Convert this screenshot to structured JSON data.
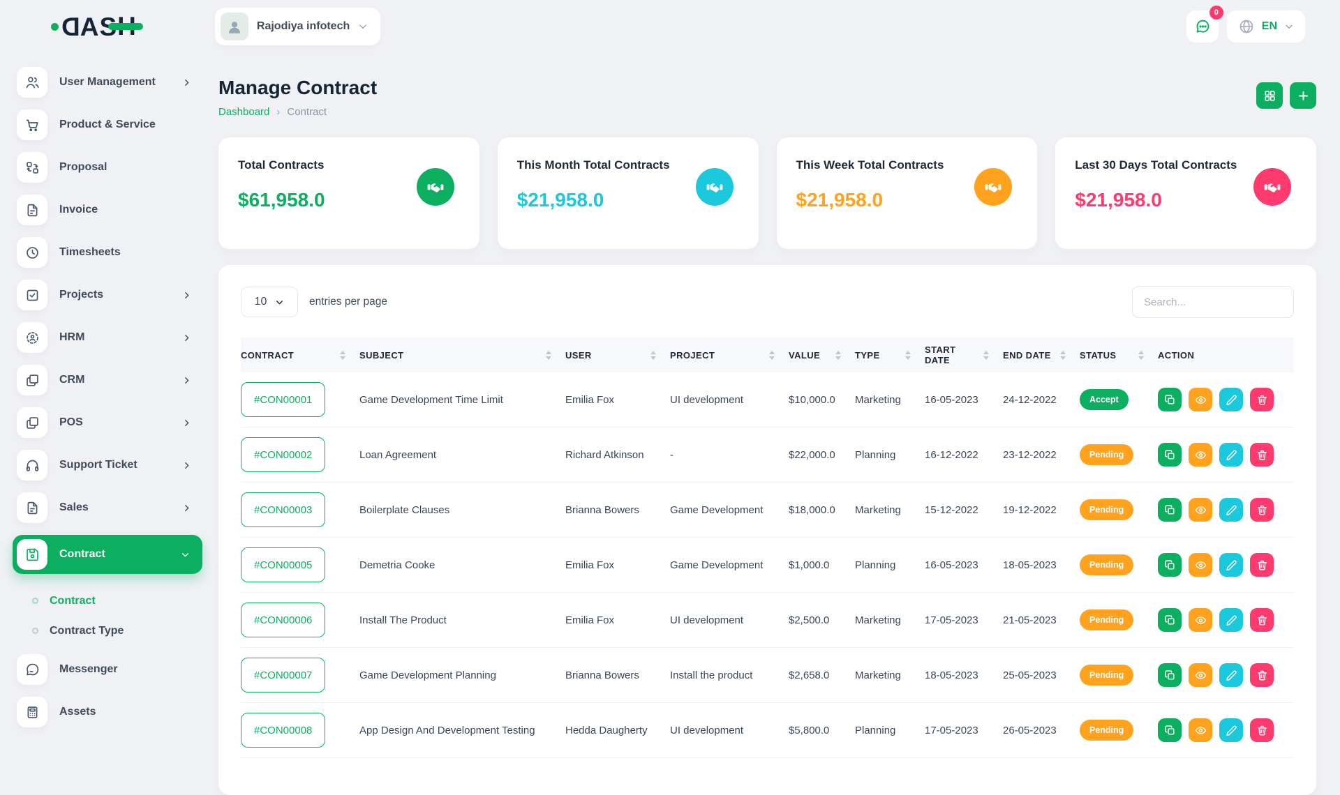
{
  "brand": {
    "name": "DASH"
  },
  "topbar": {
    "company": "Rajodiya infotech",
    "chat_badge": "0",
    "language": "EN"
  },
  "sidebar": {
    "items": [
      {
        "label": "User Management",
        "icon": "users",
        "chevron": true
      },
      {
        "label": "Product & Service",
        "icon": "cart",
        "chevron": false
      },
      {
        "label": "Proposal",
        "icon": "proposal",
        "chevron": false
      },
      {
        "label": "Invoice",
        "icon": "file",
        "chevron": false
      },
      {
        "label": "Timesheets",
        "icon": "clock",
        "chevron": false
      },
      {
        "label": "Projects",
        "icon": "check-square",
        "chevron": true
      },
      {
        "label": "HRM",
        "icon": "hrm",
        "chevron": true
      },
      {
        "label": "CRM",
        "icon": "windows",
        "chevron": true
      },
      {
        "label": "POS",
        "icon": "windows",
        "chevron": true
      },
      {
        "label": "Support Ticket",
        "icon": "headphones",
        "chevron": true
      },
      {
        "label": "Sales",
        "icon": "file",
        "chevron": true
      },
      {
        "label": "Contract",
        "icon": "save",
        "chevron": true,
        "active": true,
        "children": [
          {
            "label": "Contract",
            "active": true
          },
          {
            "label": "Contract Type",
            "active": false
          }
        ]
      },
      {
        "label": "Messenger",
        "icon": "message",
        "chevron": false
      },
      {
        "label": "Assets",
        "icon": "calculator",
        "chevron": false
      }
    ]
  },
  "page": {
    "title": "Manage Contract",
    "breadcrumb_home": "Dashboard",
    "breadcrumb_current": "Contract"
  },
  "cards": [
    {
      "title": "Total Contracts",
      "value": "$61,958.0",
      "color": "#0CAF60"
    },
    {
      "title": "This Month Total Contracts",
      "value": "$21,958.0",
      "color": "#1CC8DC"
    },
    {
      "title": "This Week Total Contracts",
      "value": "$21,958.0",
      "color": "#FFA21D"
    },
    {
      "title": "Last 30 Days Total Contracts",
      "value": "$21,958.0",
      "color": "#FF3A6E"
    }
  ],
  "controls": {
    "entries": "10",
    "entries_label": "entries per page",
    "search_placeholder": "Search..."
  },
  "table": {
    "columns": [
      {
        "label": "CONTRACT",
        "sortable": true
      },
      {
        "label": "SUBJECT",
        "sortable": true
      },
      {
        "label": "USER",
        "sortable": true
      },
      {
        "label": "PROJECT",
        "sortable": true
      },
      {
        "label": "VALUE",
        "sortable": true
      },
      {
        "label": "TYPE",
        "sortable": true
      },
      {
        "label": "START DATE",
        "sortable": true
      },
      {
        "label": "END DATE",
        "sortable": true
      },
      {
        "label": "STATUS",
        "sortable": true
      },
      {
        "label": "ACTION",
        "sortable": false
      }
    ],
    "row_actions": [
      {
        "name": "copy",
        "color": "#0CAF60"
      },
      {
        "name": "view",
        "color": "#FFA21D"
      },
      {
        "name": "edit",
        "color": "#1CC8DC"
      },
      {
        "name": "delete",
        "color": "#FF3A6E"
      }
    ],
    "rows": [
      {
        "id": "#CON00001",
        "subject": "Game Development Time Limit",
        "user": "Emilia Fox",
        "project": "UI development",
        "value": "$10,000.0",
        "type": "Marketing",
        "start_date": "16-05-2023",
        "end_date": "24-12-2022",
        "status": "Accept",
        "status_color": "#0CAF60"
      },
      {
        "id": "#CON00002",
        "subject": "Loan Agreement",
        "user": "Richard Atkinson",
        "project": "-",
        "value": "$22,000.0",
        "type": "Planning",
        "start_date": "16-12-2022",
        "end_date": "23-12-2022",
        "status": "Pending",
        "status_color": "#FFA21D"
      },
      {
        "id": "#CON00003",
        "subject": "Boilerplate Clauses",
        "user": "Brianna Bowers",
        "project": "Game Development",
        "value": "$18,000.0",
        "type": "Marketing",
        "start_date": "15-12-2022",
        "end_date": "19-12-2022",
        "status": "Pending",
        "status_color": "#FFA21D"
      },
      {
        "id": "#CON00005",
        "subject": "Demetria Cooke",
        "user": "Emilia Fox",
        "project": "Game Development",
        "value": "$1,000.0",
        "type": "Planning",
        "start_date": "16-05-2023",
        "end_date": "18-05-2023",
        "status": "Pending",
        "status_color": "#FFA21D"
      },
      {
        "id": "#CON00006",
        "subject": "Install The Product",
        "user": "Emilia Fox",
        "project": "UI development",
        "value": "$2,500.0",
        "type": "Marketing",
        "start_date": "17-05-2023",
        "end_date": "21-05-2023",
        "status": "Pending",
        "status_color": "#FFA21D"
      },
      {
        "id": "#CON00007",
        "subject": "Game Development Planning",
        "user": "Brianna Bowers",
        "project": "Install the product",
        "value": "$2,658.0",
        "type": "Marketing",
        "start_date": "18-05-2023",
        "end_date": "25-05-2023",
        "status": "Pending",
        "status_color": "#FFA21D"
      },
      {
        "id": "#CON00008",
        "subject": "App Design And Development Testing",
        "user": "Hedda Daugherty",
        "project": "UI development",
        "value": "$5,800.0",
        "type": "Planning",
        "start_date": "17-05-2023",
        "end_date": "26-05-2023",
        "status": "Pending",
        "status_color": "#FFA21D"
      }
    ]
  },
  "colors": {
    "primary": "#0CAF60",
    "cyan": "#1CC8DC",
    "orange": "#FFA21D",
    "pink": "#FF3A6E",
    "background": "#F0F1F5"
  }
}
